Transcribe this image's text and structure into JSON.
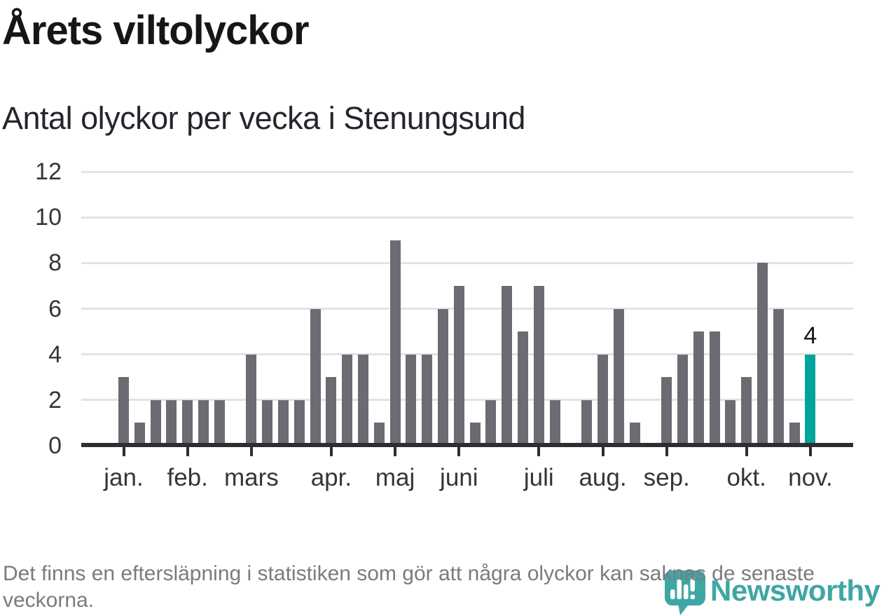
{
  "header": {
    "title": "Årets viltolyckor",
    "subtitle": "Antal olyckor per vecka i Stenungsund"
  },
  "chart_data": {
    "type": "bar",
    "title": "Antal olyckor per vecka i Stenungsund",
    "xlabel": "",
    "ylabel": "Antal olyckor",
    "ylim": [
      0,
      12
    ],
    "yticks": [
      0,
      2,
      4,
      6,
      8,
      10,
      12
    ],
    "grid": true,
    "legend": "none",
    "categories_note": "44 veckor, januari till november",
    "values": [
      3,
      1,
      2,
      2,
      2,
      2,
      2,
      0,
      4,
      2,
      2,
      2,
      6,
      3,
      4,
      4,
      1,
      9,
      4,
      4,
      6,
      7,
      1,
      2,
      7,
      5,
      7,
      2,
      0,
      2,
      4,
      6,
      1,
      0,
      3,
      4,
      5,
      5,
      2,
      3,
      8,
      6,
      1,
      4
    ],
    "month_ticks": [
      {
        "label": "jan.",
        "week_index": 1
      },
      {
        "label": "feb.",
        "week_index": 5
      },
      {
        "label": "mars",
        "week_index": 9
      },
      {
        "label": "apr.",
        "week_index": 14
      },
      {
        "label": "maj",
        "week_index": 18
      },
      {
        "label": "juni",
        "week_index": 22
      },
      {
        "label": "juli",
        "week_index": 27
      },
      {
        "label": "aug.",
        "week_index": 31
      },
      {
        "label": "sep.",
        "week_index": 35
      },
      {
        "label": "okt.",
        "week_index": 40
      },
      {
        "label": "nov.",
        "week_index": 44
      }
    ],
    "highlight_last_bar": true,
    "last_value_label": "4",
    "colors": {
      "bar": "#6b6b71",
      "highlight": "#00a49c",
      "grid": "#e3e3e4",
      "axis": "#2d2e30",
      "tick_label": "#35363a",
      "value_label": "#17181b"
    }
  },
  "footer": {
    "note": "Det finns en eftersläpning i statistiken som gör att några olyckor kan saknas de senaste veckorna.",
    "brand": "Newsworthy",
    "brand_color": "#3fa7a3"
  }
}
